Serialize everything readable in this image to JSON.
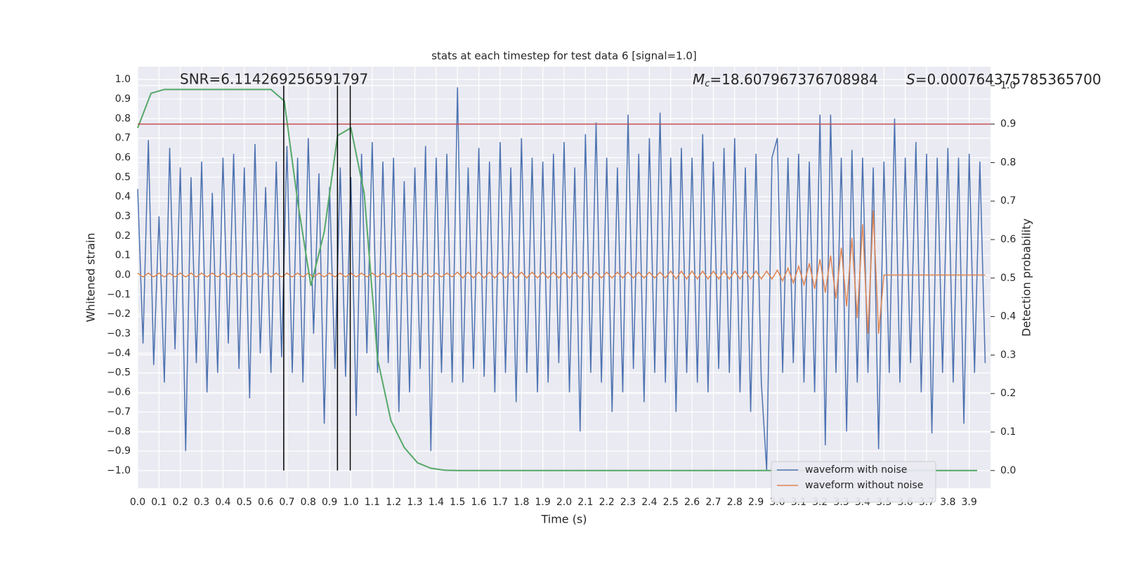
{
  "chart_data": {
    "type": "line",
    "title": "stats at each timestep for test data 6 [signal=1.0]",
    "x_label": "Time (s)",
    "y_label": "Whitened strain",
    "y2_label": "Detection probability",
    "annotations": [
      {
        "text": "SNR=6.114269256591797"
      },
      {
        "symbol": "M",
        "sub": "c",
        "text": "=18.607967376708984"
      },
      {
        "symbol": "S",
        "text": "=0.000764375785365700"
      }
    ],
    "xlim": [
      0,
      4.0
    ],
    "ylim": [
      -1.09,
      1.065
    ],
    "y2lim": [
      -0.046,
      1.049
    ],
    "grid": true,
    "legend": "lower right",
    "xticks": [
      {
        "value": 0,
        "label": "0.0"
      },
      0.1,
      0.2,
      0.3,
      0.4,
      0.5,
      0.6,
      0.7,
      0.8,
      0.9,
      {
        "value": 1,
        "label": "1.0"
      },
      1.1,
      1.2,
      1.3,
      1.4,
      1.5,
      1.6,
      1.7,
      1.8,
      1.9,
      {
        "value": 2,
        "label": "2.0"
      },
      2.1,
      2.2,
      2.3,
      2.4,
      2.5,
      2.6,
      2.7,
      2.8,
      2.9,
      {
        "value": 3,
        "label": "3.0"
      },
      3.1,
      3.2,
      3.3,
      3.4,
      3.5,
      3.6,
      3.7,
      3.8,
      3.9
    ],
    "yticks": [
      {
        "value": 1,
        "label": "1.0"
      },
      0.9,
      0.8,
      0.7,
      0.6,
      0.5,
      0.4,
      0.3,
      0.2,
      0.1,
      {
        "value": 0,
        "label": "0.0"
      },
      {
        "value": -0.1,
        "label": "−0.1"
      },
      {
        "value": -0.2,
        "label": "−0.2"
      },
      {
        "value": -0.3,
        "label": "−0.3"
      },
      {
        "value": -0.4,
        "label": "−0.4"
      },
      {
        "value": -0.5,
        "label": "−0.5"
      },
      {
        "value": -0.6,
        "label": "−0.6"
      },
      {
        "value": -0.7,
        "label": "−0.7"
      },
      {
        "value": -0.8,
        "label": "−0.8"
      },
      {
        "value": -0.9,
        "label": "−0.9"
      },
      {
        "value": -1,
        "label": "−1.0"
      }
    ],
    "y2ticks": [
      {
        "value": 0,
        "label": "0.0"
      },
      0.1,
      0.2,
      0.3,
      0.4,
      0.5,
      0.6,
      0.7,
      0.8,
      0.9,
      {
        "value": 1,
        "label": "1.0"
      }
    ],
    "threshold": {
      "value": 0.9,
      "axis": "y2",
      "color": "#c44e52"
    },
    "vlines": {
      "x": [
        0.685,
        0.937,
        0.997
      ],
      "color": "#000000"
    },
    "x": [
      0,
      0.025,
      0.05,
      0.075,
      0.1,
      0.125,
      0.15,
      0.175,
      0.2,
      0.225,
      0.25,
      0.275,
      0.3,
      0.325,
      0.35,
      0.375,
      0.4,
      0.425,
      0.45,
      0.475,
      0.5,
      0.525,
      0.55,
      0.575,
      0.6,
      0.625,
      0.65,
      0.675,
      0.7,
      0.725,
      0.75,
      0.775,
      0.8,
      0.825,
      0.85,
      0.875,
      0.9,
      0.925,
      0.95,
      0.975,
      1,
      1.025,
      1.05,
      1.075,
      1.1,
      1.125,
      1.15,
      1.175,
      1.2,
      1.225,
      1.25,
      1.275,
      1.3,
      1.325,
      1.35,
      1.375,
      1.4,
      1.425,
      1.45,
      1.475,
      1.5,
      1.525,
      1.55,
      1.575,
      1.6,
      1.625,
      1.65,
      1.675,
      1.7,
      1.725,
      1.75,
      1.775,
      1.8,
      1.825,
      1.85,
      1.875,
      1.9,
      1.925,
      1.95,
      1.975,
      2,
      2.025,
      2.05,
      2.075,
      2.1,
      2.125,
      2.15,
      2.175,
      2.2,
      2.225,
      2.25,
      2.275,
      2.3,
      2.325,
      2.35,
      2.375,
      2.4,
      2.425,
      2.45,
      2.475,
      2.5,
      2.525,
      2.55,
      2.575,
      2.6,
      2.625,
      2.65,
      2.675,
      2.7,
      2.725,
      2.75,
      2.775,
      2.8,
      2.825,
      2.85,
      2.875,
      2.9,
      2.925,
      2.95,
      2.975,
      3,
      3.025,
      3.05,
      3.075,
      3.1,
      3.125,
      3.15,
      3.175,
      3.2,
      3.225,
      3.25,
      3.275,
      3.3,
      3.325,
      3.35,
      3.375,
      3.4,
      3.425,
      3.45,
      3.475,
      3.5,
      3.525,
      3.55,
      3.575,
      3.6,
      3.625,
      3.65,
      3.675,
      3.7,
      3.725,
      3.75,
      3.775,
      3.8,
      3.825,
      3.85,
      3.875,
      3.9,
      3.925,
      3.95,
      3.975
    ],
    "series": [
      {
        "name": "waveform with noise",
        "color": "#4c72b0",
        "values": [
          0.44,
          -0.35,
          0.69,
          -0.46,
          0.3,
          -0.55,
          0.65,
          -0.38,
          0.55,
          -0.9,
          0.5,
          -0.45,
          0.58,
          -0.6,
          0.42,
          -0.5,
          0.6,
          -0.35,
          0.62,
          -0.48,
          0.55,
          -0.63,
          0.67,
          -0.4,
          0.45,
          -0.5,
          0.58,
          -0.42,
          0.66,
          -0.5,
          0.6,
          -0.55,
          0.7,
          -0.3,
          0.52,
          -0.76,
          0.45,
          -0.48,
          0.55,
          -0.52,
          0.5,
          -0.72,
          0.62,
          -0.4,
          0.68,
          -0.5,
          0.58,
          -0.45,
          0.6,
          -0.7,
          0.48,
          -0.6,
          0.55,
          -0.48,
          0.66,
          -0.9,
          0.6,
          -0.5,
          0.62,
          -0.55,
          0.96,
          -0.55,
          0.55,
          -0.48,
          0.65,
          -0.52,
          0.58,
          -0.6,
          0.68,
          -0.5,
          0.55,
          -0.65,
          0.7,
          -0.5,
          0.6,
          -0.6,
          0.58,
          -0.55,
          0.62,
          -0.45,
          0.68,
          -0.6,
          0.55,
          -0.8,
          0.72,
          -0.5,
          0.78,
          -0.55,
          0.6,
          -0.7,
          0.55,
          -0.6,
          0.82,
          -0.48,
          0.62,
          -0.65,
          0.7,
          -0.5,
          0.83,
          -0.55,
          0.6,
          -0.7,
          0.65,
          -0.5,
          0.6,
          -0.55,
          0.72,
          -0.6,
          0.58,
          -0.48,
          0.65,
          -0.5,
          0.7,
          -0.6,
          0.55,
          -0.7,
          0.62,
          -0.55,
          -1.0,
          0.6,
          0.7,
          -0.5,
          0.6,
          -0.45,
          0.62,
          -0.55,
          0.58,
          -0.6,
          0.82,
          -0.87,
          0.82,
          -0.5,
          0.6,
          -0.8,
          0.64,
          -0.55,
          0.6,
          -0.5,
          0.55,
          -0.89,
          0.58,
          -0.5,
          0.8,
          -0.55,
          0.6,
          -0.45,
          0.68,
          -0.6,
          0.62,
          -0.81,
          0.6,
          -0.5,
          0.65,
          -0.55,
          0.6,
          -0.76,
          0.62,
          -0.5,
          0.58,
          -0.45
        ]
      },
      {
        "name": "waveform without noise",
        "color": "#dd8452",
        "values": [
          0.01,
          -0.01,
          0.01,
          -0.01,
          0.01,
          -0.01,
          0.01,
          -0.01,
          0.01,
          -0.01,
          0.01,
          -0.01,
          0.01,
          -0.01,
          0.01,
          -0.01,
          0.01,
          -0.01,
          0.01,
          -0.01,
          0.01,
          -0.01,
          0.01,
          -0.01,
          0.01,
          -0.01,
          0.01,
          -0.01,
          0.01,
          -0.01,
          0.01,
          -0.01,
          0.01,
          -0.01,
          0.01,
          -0.01,
          0.01,
          -0.01,
          0.01,
          -0.01,
          0.01,
          -0.01,
          0.01,
          -0.01,
          0.01,
          -0.01,
          0.01,
          -0.01,
          0.01,
          -0.01,
          0.01,
          -0.01,
          0.01,
          -0.01,
          0.01,
          -0.01,
          0.01,
          -0.01,
          0.01,
          -0.01,
          0.015,
          -0.015,
          0.015,
          -0.015,
          0.015,
          -0.015,
          0.015,
          -0.015,
          0.015,
          -0.015,
          0.015,
          -0.015,
          0.015,
          -0.015,
          0.015,
          -0.015,
          0.015,
          -0.015,
          0.015,
          -0.015,
          0.015,
          -0.015,
          0.015,
          -0.015,
          0.015,
          -0.015,
          0.015,
          -0.015,
          0.015,
          -0.015,
          0.015,
          -0.015,
          0.015,
          -0.015,
          0.015,
          -0.015,
          0.015,
          -0.015,
          0.015,
          -0.015,
          0.02,
          -0.02,
          0.02,
          -0.02,
          0.02,
          -0.02,
          0.02,
          -0.02,
          0.02,
          -0.02,
          0.02,
          -0.02,
          0.02,
          -0.02,
          0.02,
          -0.02,
          0.02,
          -0.02,
          0.02,
          -0.02,
          0.025,
          -0.03,
          0.035,
          -0.04,
          0.045,
          -0.05,
          0.06,
          -0.07,
          0.08,
          -0.09,
          0.1,
          -0.12,
          0.14,
          -0.16,
          0.19,
          -0.22,
          0.26,
          -0.3,
          0.33,
          -0.3,
          0,
          0,
          0,
          0,
          0,
          0,
          0,
          0,
          0,
          0,
          0,
          0,
          0,
          0,
          0,
          0,
          0,
          0,
          0,
          0
        ]
      },
      {
        "color": "#55a868",
        "axis": "y2",
        "x": [
          0,
          0.0625,
          0.125,
          0.1875,
          0.25,
          0.3125,
          0.375,
          0.4375,
          0.5,
          0.5625,
          0.625,
          0.6875,
          0.75,
          0.8125,
          0.875,
          0.9375,
          1,
          1.0625,
          1.125,
          1.1875,
          1.25,
          1.3125,
          1.375,
          1.4375,
          1.5,
          1.5625,
          1.625,
          1.6875,
          1.75,
          1.8125,
          1.875,
          1.9375,
          2,
          2.0625,
          2.125,
          2.1875,
          2.25,
          2.3125,
          2.375,
          2.4375,
          2.5,
          2.5625,
          2.625,
          2.6875,
          2.75,
          2.8125,
          2.875,
          2.9375,
          3,
          3.0625,
          3.125,
          3.1875,
          3.25,
          3.3125,
          3.375,
          3.4375,
          3.5,
          3.5625,
          3.625,
          3.6875,
          3.75,
          3.8125,
          3.875,
          3.9375
        ],
        "values": [
          0.89,
          0.98,
          0.99,
          0.99,
          0.99,
          0.99,
          0.99,
          0.99,
          0.99,
          0.99,
          0.99,
          0.96,
          0.7,
          0.48,
          0.62,
          0.87,
          0.89,
          0.72,
          0.29,
          0.13,
          0.06,
          0.02,
          0.006,
          0.001,
          0,
          0,
          0,
          0,
          0,
          0,
          0,
          0,
          0,
          0,
          0,
          0,
          0,
          0,
          0,
          0,
          0,
          0,
          0,
          0,
          0,
          0,
          0,
          0,
          0,
          0,
          0,
          0,
          0,
          0,
          0,
          0,
          0,
          0,
          0,
          0,
          0,
          0,
          0,
          0
        ]
      }
    ]
  }
}
